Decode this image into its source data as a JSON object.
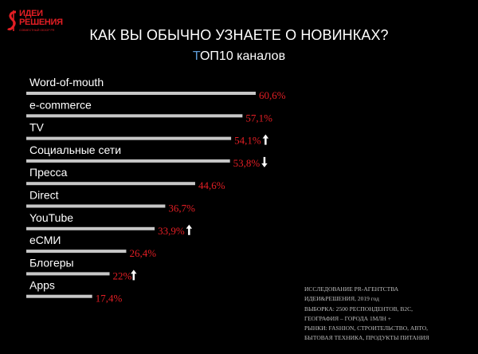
{
  "brand": {
    "logo_line1": "ИДЕИ",
    "logo_line2": "РЕШЕНИЯ",
    "logo_tagline": "СОВМЕСТНЫЙ ОБЗОР PR",
    "color": "#e31e24"
  },
  "colors": {
    "background": "#000000",
    "bar": "#c7c7c7",
    "value": "#e31e24",
    "label": "#ffffff",
    "accent": "#5e9bd6",
    "arrow": "#ffffff"
  },
  "chart_data": {
    "type": "bar",
    "orientation": "horizontal",
    "title": "КАК ВЫ ОБЫЧНО УЗНАЕТЕ О НОВИНКАХ?",
    "subtitle": "ТОП10 каналов",
    "categories": [
      "Word-of-mouth",
      "e-commerce",
      "TV",
      "Социальные сети",
      "Пресса",
      "Direct",
      "YouTube",
      "eСМИ",
      "Блогеры",
      "Apps"
    ],
    "values": [
      60.6,
      57.1,
      54.1,
      53.8,
      44.6,
      36.7,
      33.9,
      26.4,
      22,
      17.4
    ],
    "value_labels": [
      "60,6%",
      "57,1%",
      "54,1%",
      "53,8%",
      "44,6%",
      "36,7%",
      "33,9%",
      "26,4%",
      "22%",
      "17,4%"
    ],
    "trend": [
      "",
      "",
      "up",
      "down",
      "",
      "",
      "up",
      "",
      "up",
      ""
    ],
    "xlim": [
      0,
      60.6
    ],
    "grid": false,
    "legend": "none"
  },
  "footnote": {
    "lines": [
      "ИССЛЕДОВАНИЕ PR-АГЕНТСТВА",
      "ИДЕИ&РЕШЕНИЯ, 2019 год",
      "ВЫБОРКА: 2500 РЕСПОНДЕНТОВ, B2C,",
      "ГЕОГРАФИЯ – ГОРОДА 1МЛН +",
      "РЫНКИ: FASHION, СТРОИТЕЛЬСТВО, АВТО,",
      "БЫТОВАЯ ТЕХНИКА, ПРОДУКТЫ ПИТАНИЯ"
    ]
  }
}
